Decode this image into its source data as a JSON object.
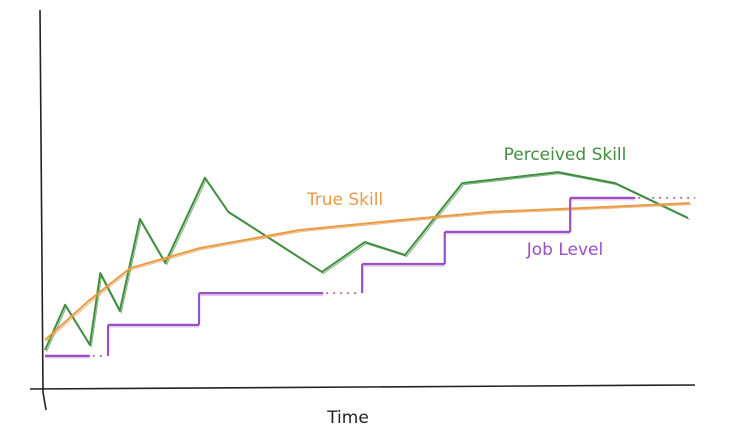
{
  "chart_data": {
    "type": "line",
    "x_label": "Time",
    "xlim": [
      0,
      100
    ],
    "ylim": [
      0,
      100
    ],
    "series": [
      {
        "name": "Perceived Skill",
        "color": "#3f8f3f",
        "x": [
          0,
          3.1,
          6.9,
          8.5,
          11.5,
          14.6,
          18.5,
          24.6,
          28.2,
          42.6,
          49.2,
          55.4,
          64.2,
          78.9,
          87.7,
          98.9
        ],
        "values": [
          10,
          22,
          11.4,
          30.4,
          20.4,
          44.7,
          33.1,
          55.6,
          46.6,
          30.7,
          38.6,
          35.2,
          54.2,
          57.1,
          54.2,
          45
        ]
      },
      {
        "name": "True Skill",
        "color": "#e89a45",
        "x": [
          0,
          6.9,
          13.1,
          23.8,
          39.2,
          54.6,
          68.5,
          82.3,
          99.2
        ],
        "values": [
          12.7,
          23.3,
          31.7,
          37,
          41.8,
          44.4,
          46.6,
          47.6,
          48.9
        ]
      },
      {
        "name": "Job Level",
        "color": "#9a4fc2",
        "step": true,
        "x": [
          0,
          9.7,
          23.7,
          48.8,
          61.5,
          80.8
        ],
        "values": [
          8.5,
          16.7,
          25.1,
          32.8,
          41.3,
          50.3
        ],
        "dashed_from": [
          6.9,
          null,
          42.8,
          null,
          null,
          90.8
        ],
        "x_end": 100.5
      }
    ]
  }
}
